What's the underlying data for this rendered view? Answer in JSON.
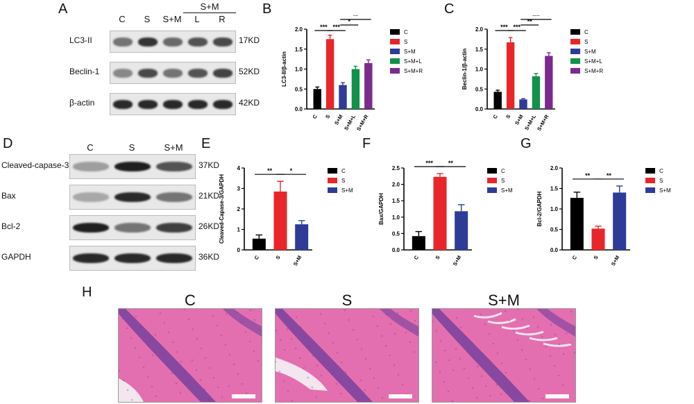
{
  "panels": {
    "A": "A",
    "B": "B",
    "C": "C",
    "D": "D",
    "E": "E",
    "F": "F",
    "G": "G",
    "H": "H"
  },
  "blot_a": {
    "group_header": "S+M",
    "lanes": [
      "C",
      "S",
      "S+M",
      "L",
      "R"
    ],
    "rows": [
      {
        "label": "LC3-II",
        "kd": "17KD",
        "intensity": [
          0.55,
          0.85,
          0.6,
          0.7,
          0.75
        ]
      },
      {
        "label": "Beclin-1",
        "kd": "52KD",
        "intensity": [
          0.45,
          0.75,
          0.55,
          0.7,
          0.78
        ]
      },
      {
        "label": "β-actin",
        "kd": "42KD",
        "intensity": [
          0.9,
          0.9,
          0.9,
          0.9,
          0.9
        ]
      }
    ]
  },
  "blot_d": {
    "lanes": [
      "C",
      "S",
      "S+M"
    ],
    "rows": [
      {
        "label": "Cleaved-capase-3",
        "kd": "37KD",
        "intensity": [
          0.35,
          0.95,
          0.7
        ]
      },
      {
        "label": "Bax",
        "kd": "21KD",
        "intensity": [
          0.3,
          0.9,
          0.55
        ]
      },
      {
        "label": "Bcl-2",
        "kd": "26KD",
        "intensity": [
          0.95,
          0.55,
          0.8
        ]
      },
      {
        "label": "GAPDH",
        "kd": "36KD",
        "intensity": [
          0.9,
          0.9,
          0.9
        ]
      }
    ]
  },
  "chart_data": [
    {
      "id": "B",
      "type": "bar",
      "categories": [
        "C",
        "S",
        "S+M",
        "S+M+L",
        "S+M+R"
      ],
      "values": [
        0.5,
        1.75,
        0.6,
        1.0,
        1.15
      ],
      "errors": [
        0.05,
        0.1,
        0.06,
        0.07,
        0.08
      ],
      "colors": [
        "#000000",
        "#e8262a",
        "#2e3c97",
        "#11914a",
        "#7b2a8e"
      ],
      "ylabel": "LC3-II/β-actin",
      "ylim": [
        0,
        2.0
      ],
      "yticks": [
        "0.0",
        "0.5",
        "1.0",
        "1.5",
        "2.0"
      ],
      "legend": [
        "C",
        "S",
        "S+M",
        "S+M+L",
        "S+M+R"
      ],
      "significance": [
        {
          "from": 0,
          "to": 1,
          "label": "***",
          "level": 0
        },
        {
          "from": 1,
          "to": 2,
          "label": "***",
          "level": 0
        },
        {
          "from": 2,
          "to": 3,
          "label": "*",
          "level": 1
        },
        {
          "from": 2,
          "to": 4,
          "label": "**",
          "level": 2
        }
      ]
    },
    {
      "id": "C",
      "type": "bar",
      "categories": [
        "C",
        "S",
        "S+M",
        "S+M+L",
        "S+M+R"
      ],
      "values": [
        0.43,
        1.67,
        0.24,
        0.82,
        1.33
      ],
      "errors": [
        0.04,
        0.12,
        0.02,
        0.07,
        0.08
      ],
      "colors": [
        "#000000",
        "#e8262a",
        "#2e3c97",
        "#11914a",
        "#7b2a8e"
      ],
      "ylabel": "Beclin-1/β-actin",
      "ylim": [
        0,
        2.0
      ],
      "yticks": [
        "0.0",
        "0.5",
        "1.0",
        "1.5",
        "2.0"
      ],
      "legend": [
        "C",
        "S",
        "S+M",
        "S+M+L",
        "S+M+R"
      ],
      "significance": [
        {
          "from": 0,
          "to": 1,
          "label": "***",
          "level": 0
        },
        {
          "from": 1,
          "to": 2,
          "label": "***",
          "level": 0
        },
        {
          "from": 2,
          "to": 3,
          "label": "**",
          "level": 1
        },
        {
          "from": 2,
          "to": 4,
          "label": "***",
          "level": 2
        }
      ]
    },
    {
      "id": "E",
      "type": "bar",
      "categories": [
        "C",
        "S",
        "S+M"
      ],
      "values": [
        0.55,
        2.85,
        1.25
      ],
      "errors": [
        0.18,
        0.5,
        0.18
      ],
      "colors": [
        "#000000",
        "#e8262a",
        "#2e3c97"
      ],
      "ylabel": "Cleaved-Capase-3/GAPDH",
      "ylim": [
        0,
        4
      ],
      "yticks": [
        "0",
        "1",
        "2",
        "3",
        "4"
      ],
      "legend": [
        "C",
        "S",
        "S+M"
      ],
      "significance": [
        {
          "from": 0,
          "to": 1,
          "label": "**",
          "level": 0
        },
        {
          "from": 1,
          "to": 2,
          "label": "*",
          "level": 0
        }
      ]
    },
    {
      "id": "F",
      "type": "bar",
      "categories": [
        "C",
        "S",
        "S+M"
      ],
      "values": [
        0.42,
        2.23,
        1.18
      ],
      "errors": [
        0.14,
        0.1,
        0.2
      ],
      "colors": [
        "#000000",
        "#e8262a",
        "#2e3c97"
      ],
      "ylabel": "Bax/GAPDH",
      "ylim": [
        0,
        2.5
      ],
      "yticks": [
        "0.0",
        "0.5",
        "1.0",
        "1.5",
        "2.0",
        "2.5"
      ],
      "legend": [
        "C",
        "S",
        "S+M"
      ],
      "significance": [
        {
          "from": 0,
          "to": 1,
          "label": "***",
          "level": 0
        },
        {
          "from": 1,
          "to": 2,
          "label": "**",
          "level": 0
        }
      ]
    },
    {
      "id": "G",
      "type": "bar",
      "categories": [
        "C",
        "S",
        "S+M"
      ],
      "values": [
        1.27,
        0.52,
        1.4
      ],
      "errors": [
        0.14,
        0.06,
        0.16
      ],
      "colors": [
        "#000000",
        "#e8262a",
        "#2e3c97"
      ],
      "ylabel": "Bcl-2/GAPDH",
      "ylim": [
        0,
        2.0
      ],
      "yticks": [
        "0.0",
        "0.5",
        "1.0",
        "1.5",
        "2.0"
      ],
      "legend": [
        "C",
        "S",
        "S+M"
      ],
      "significance": [
        {
          "from": 0,
          "to": 1,
          "label": "**",
          "level": 0
        },
        {
          "from": 1,
          "to": 2,
          "label": "**",
          "level": 0
        }
      ]
    }
  ],
  "histology": {
    "titles": [
      "C",
      "S",
      "S+M"
    ],
    "colors": {
      "tissue": "#e46fb0",
      "nuclei": "#6b3b9a",
      "background": "#f3e6ee"
    }
  }
}
